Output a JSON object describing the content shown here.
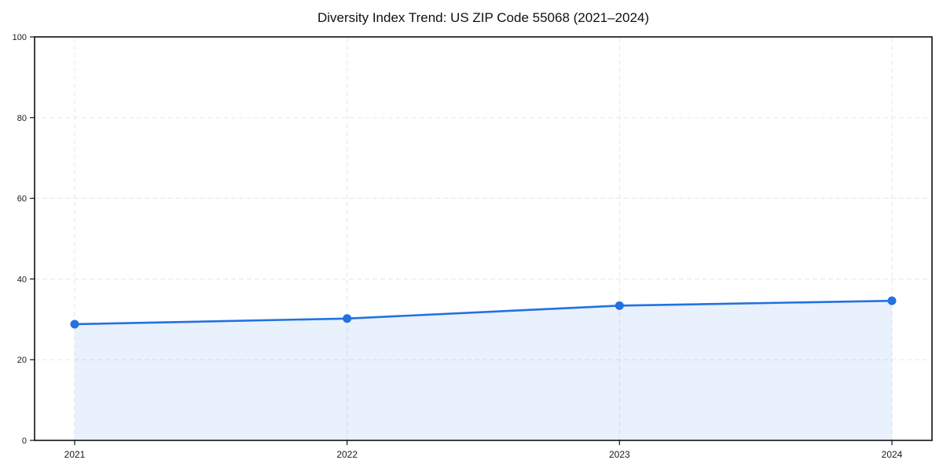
{
  "chart_data": {
    "type": "area",
    "title": "Diversity Index Trend: US ZIP Code 55068 (2021–2024)",
    "categories": [
      "2021",
      "2022",
      "2023",
      "2024"
    ],
    "series": [
      {
        "name": "Diversity Index",
        "values": [
          28.8,
          30.2,
          33.4,
          34.6
        ]
      }
    ],
    "xlabel": "",
    "ylabel": "",
    "ylim": [
      0,
      100
    ],
    "yticks": [
      0,
      20,
      40,
      60,
      80,
      100
    ],
    "grid": true,
    "grid_style": "dashed",
    "legend": false,
    "marker": "circle",
    "colors": {
      "line": "#2272e0",
      "fill": "#2272e0",
      "fill_opacity": 0.1,
      "grid": "#e7e7e7",
      "axis": "#111111",
      "tick_label": "#1a1a1a",
      "background": "#ffffff"
    }
  }
}
